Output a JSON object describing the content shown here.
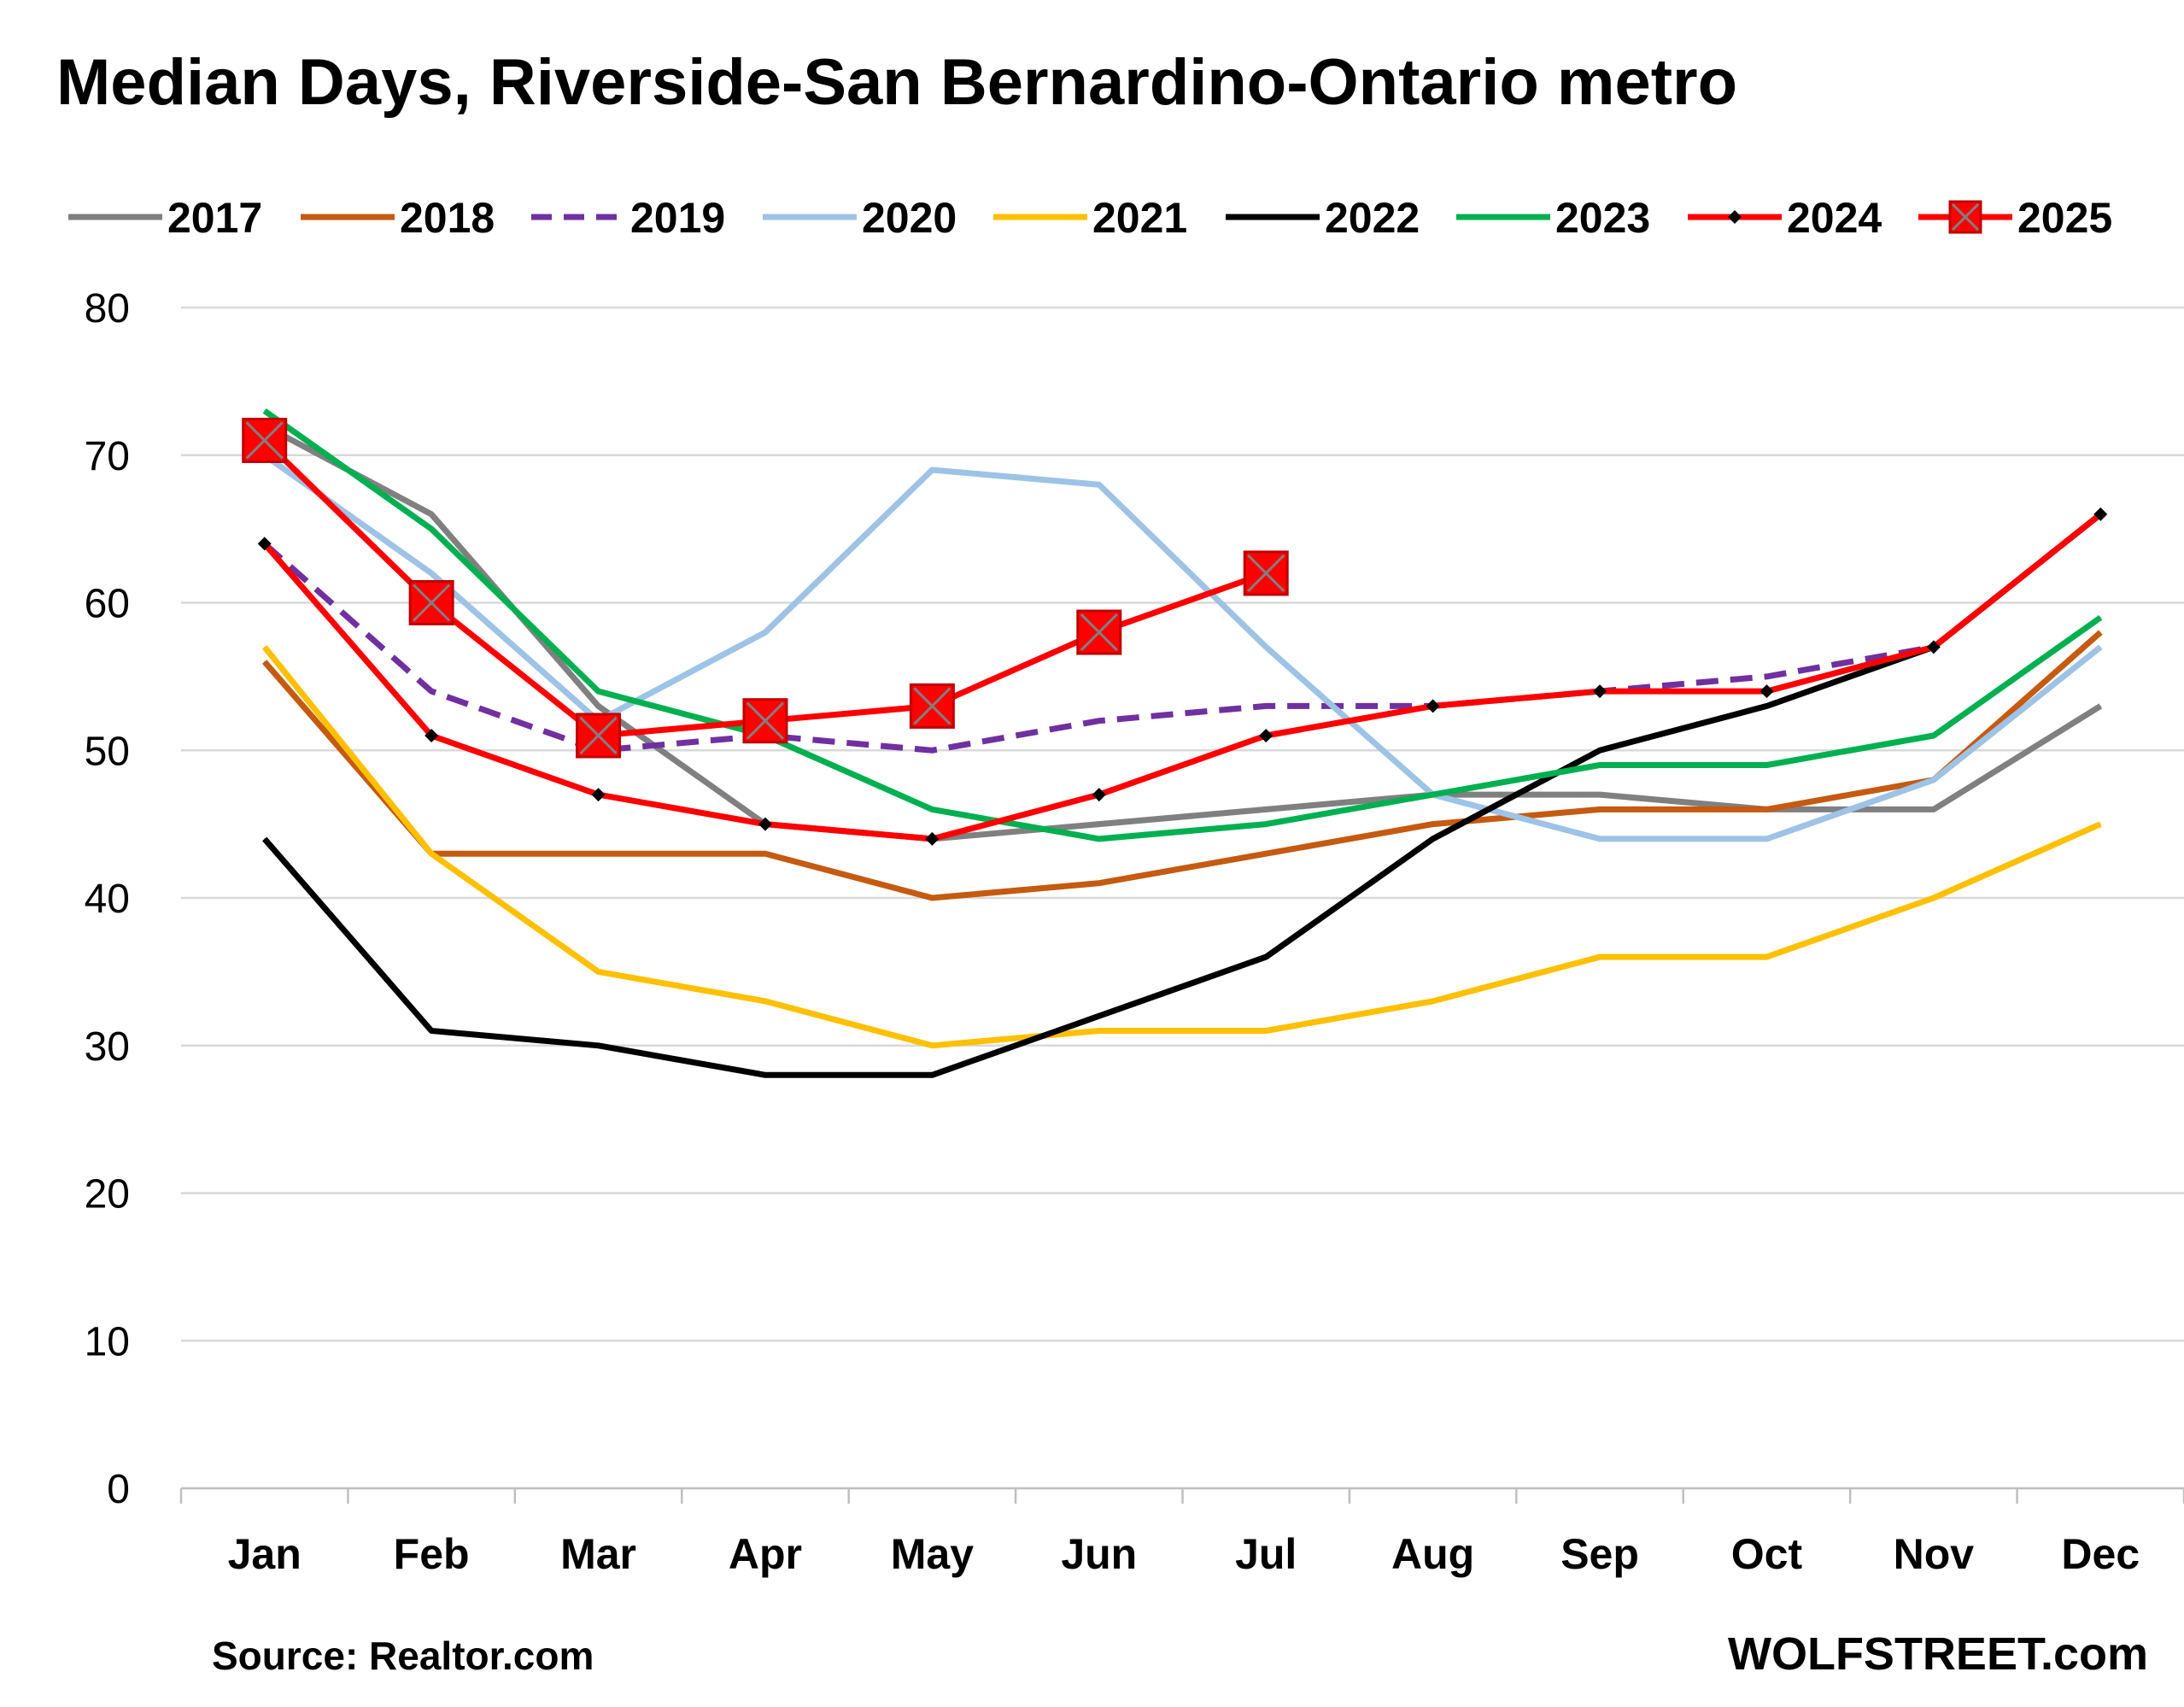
{
  "chart_data": {
    "type": "line",
    "title": "Median Days, Riverside-San Bernardino-Ontario metro",
    "xlabel": "",
    "ylabel": "",
    "categories": [
      "Jan",
      "Feb",
      "Mar",
      "Apr",
      "May",
      "Jun",
      "Jul",
      "Aug",
      "Sep",
      "Oct",
      "Nov",
      "Dec"
    ],
    "ylim": [
      0,
      80
    ],
    "yticks": [
      0,
      10,
      20,
      30,
      40,
      50,
      60,
      70,
      80
    ],
    "grid": "horizontal",
    "legend_position": "top",
    "series": [
      {
        "name": "2017",
        "color": "#808080",
        "style": "solid",
        "marker": "none",
        "values": [
          72,
          66,
          53,
          45,
          44,
          45,
          46,
          47,
          47,
          46,
          46,
          53
        ]
      },
      {
        "name": "2018",
        "color": "#C55A11",
        "style": "solid",
        "marker": "none",
        "values": [
          56,
          43,
          43,
          43,
          40,
          41,
          43,
          45,
          46,
          46,
          48,
          58
        ]
      },
      {
        "name": "2019",
        "color": "#7030A0",
        "style": "dashed",
        "marker": "none",
        "values": [
          64,
          54,
          50,
          51,
          50,
          52,
          53,
          53,
          54,
          55,
          57,
          66
        ]
      },
      {
        "name": "2020",
        "color": "#9DC3E6",
        "style": "solid",
        "marker": "none",
        "values": [
          70,
          62,
          52,
          58,
          69,
          68,
          57,
          47,
          44,
          44,
          48,
          57
        ]
      },
      {
        "name": "2021",
        "color": "#FFC000",
        "style": "solid",
        "marker": "none",
        "values": [
          57,
          43,
          35,
          33,
          30,
          31,
          31,
          33,
          36,
          36,
          40,
          45
        ]
      },
      {
        "name": "2022",
        "color": "#000000",
        "style": "solid",
        "marker": "none",
        "values": [
          44,
          31,
          30,
          28,
          28,
          32,
          36,
          44,
          50,
          53,
          57,
          66
        ]
      },
      {
        "name": "2023",
        "color": "#00B050",
        "style": "solid",
        "marker": "none",
        "values": [
          73,
          65,
          54,
          51,
          46,
          44,
          45,
          47,
          49,
          49,
          51,
          59
        ]
      },
      {
        "name": "2024",
        "color": "#FF0000",
        "style": "solid",
        "marker": "small-diamond",
        "values": [
          64,
          51,
          47,
          45,
          44,
          47,
          51,
          53,
          54,
          54,
          57,
          66
        ]
      },
      {
        "name": "2025",
        "color": "#FF0000",
        "style": "solid",
        "marker": "square-x",
        "values": [
          71,
          60,
          51,
          52,
          53,
          58,
          62,
          null,
          null,
          null,
          null,
          null
        ]
      }
    ]
  },
  "footer": {
    "source": "Source: Realtor.com",
    "brand": "WOLFSTREET.com"
  }
}
